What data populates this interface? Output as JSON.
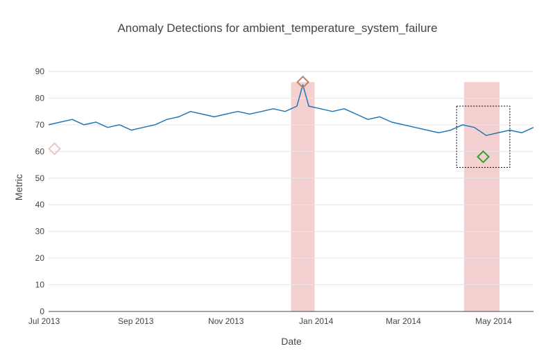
{
  "chart_data": {
    "type": "line",
    "title": "Anomaly Detections for ambient_temperature_system_failure",
    "xlabel": "Date",
    "ylabel": "Metric",
    "ylim": [
      0,
      90
    ],
    "xlim": [
      "2013-07-04",
      "2014-05-28"
    ],
    "y_ticks": [
      0,
      10,
      20,
      30,
      40,
      50,
      60,
      70,
      80,
      90
    ],
    "x_ticks": [
      {
        "date": "2013-07-01",
        "label": "Jul 2013"
      },
      {
        "date": "2013-09-01",
        "label": "Sep 2013"
      },
      {
        "date": "2013-11-01",
        "label": "Nov 2013"
      },
      {
        "date": "2014-01-01",
        "label": "Jan 2014"
      },
      {
        "date": "2014-03-01",
        "label": "Mar 2014"
      },
      {
        "date": "2014-05-01",
        "label": "May 2014"
      }
    ],
    "grid": true,
    "series": [
      {
        "color": "#1f77b4",
        "x": [
          "2013-07-04",
          "2013-07-12",
          "2013-07-20",
          "2013-07-28",
          "2013-08-05",
          "2013-08-13",
          "2013-08-21",
          "2013-08-29",
          "2013-09-06",
          "2013-09-14",
          "2013-09-22",
          "2013-09-30",
          "2013-10-08",
          "2013-10-16",
          "2013-10-24",
          "2013-11-01",
          "2013-11-09",
          "2013-11-17",
          "2013-11-25",
          "2013-12-03",
          "2013-12-11",
          "2013-12-19",
          "2013-12-23",
          "2013-12-27",
          "2014-01-04",
          "2014-01-12",
          "2014-01-20",
          "2014-01-28",
          "2014-02-05",
          "2014-02-13",
          "2014-02-21",
          "2014-03-01",
          "2014-03-09",
          "2014-03-17",
          "2014-03-25",
          "2014-04-02",
          "2014-04-10",
          "2014-04-18",
          "2014-04-26",
          "2014-05-04",
          "2014-05-12",
          "2014-05-20",
          "2014-05-28"
        ],
        "y": [
          70,
          71,
          72,
          70,
          71,
          69,
          70,
          68,
          69,
          70,
          72,
          73,
          75,
          74,
          73,
          74,
          75,
          74,
          75,
          76,
          75,
          77,
          85,
          77,
          76,
          75,
          76,
          74,
          72,
          73,
          71,
          70,
          69,
          68,
          67,
          68,
          70,
          69,
          66,
          67,
          68,
          67,
          69
        ]
      }
    ],
    "anomaly_markers": [
      {
        "date": "2013-07-08",
        "value": 61,
        "color": "#f2c4c4"
      },
      {
        "date": "2013-12-23",
        "value": 86,
        "color": "#c87f5e"
      },
      {
        "date": "2014-04-24",
        "value": 58,
        "color": "#2ca02c"
      }
    ],
    "anomaly_windows": [
      {
        "start": "2013-12-15",
        "end": "2013-12-31",
        "ymax": 86,
        "color": "#f2c4c4"
      },
      {
        "start": "2014-04-11",
        "end": "2014-05-05",
        "ymax": 86,
        "color": "#f2c4c4"
      }
    ],
    "selection_box": {
      "start": "2014-04-06",
      "end": "2014-05-12",
      "ymin": 54,
      "ymax": 77
    }
  }
}
